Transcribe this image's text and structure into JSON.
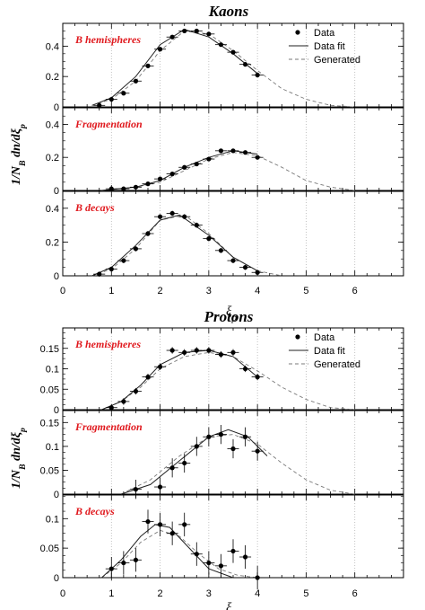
{
  "chart_data": [
    {
      "type": "scatter",
      "title": "Kaons",
      "ylabel": "1/N_B dn/dξ_p",
      "xlabel": "ξ_p",
      "xlim": [
        0,
        7
      ],
      "xticks": [
        "0",
        "1",
        "2",
        "3",
        "4",
        "5",
        "6"
      ],
      "legend": [
        "Data",
        "Data fit",
        "Generated"
      ],
      "legend_position": "top-right",
      "panels": [
        {
          "label": "B hemispheres",
          "ylim": [
            0,
            0.55
          ],
          "yticks": [
            "0",
            "0.2",
            "0.4"
          ],
          "data": {
            "x": [
              0.75,
              1.0,
              1.25,
              1.5,
              1.75,
              2.0,
              2.25,
              2.5,
              2.75,
              3.0,
              3.25,
              3.5,
              3.75,
              4.0
            ],
            "y": [
              0.01,
              0.05,
              0.09,
              0.17,
              0.27,
              0.38,
              0.46,
              0.5,
              0.5,
              0.48,
              0.41,
              0.36,
              0.28,
              0.21
            ],
            "xerr": 0.12,
            "yerr": 0.01
          },
          "data_fit": {
            "x": [
              0.6,
              1.0,
              1.5,
              2.0,
              2.5,
              3.0,
              3.5,
              4.0
            ],
            "y": [
              0.01,
              0.06,
              0.2,
              0.41,
              0.51,
              0.46,
              0.35,
              0.22
            ]
          },
          "generated": {
            "x": [
              0.6,
              1.0,
              1.5,
              2.0,
              2.5,
              3.0,
              3.5,
              4.0,
              4.5,
              5.0,
              5.5,
              6.0
            ],
            "y": [
              0.01,
              0.05,
              0.17,
              0.37,
              0.5,
              0.48,
              0.37,
              0.24,
              0.12,
              0.05,
              0.01,
              0.0
            ]
          }
        },
        {
          "label": "Fragmentation",
          "ylim": [
            0,
            0.5
          ],
          "yticks": [
            "0",
            "0.2",
            "0.4"
          ],
          "data": {
            "x": [
              1.0,
              1.25,
              1.5,
              1.75,
              2.0,
              2.25,
              2.5,
              2.75,
              3.0,
              3.25,
              3.5,
              3.75,
              4.0
            ],
            "y": [
              0.01,
              0.01,
              0.02,
              0.04,
              0.07,
              0.1,
              0.14,
              0.16,
              0.19,
              0.24,
              0.24,
              0.23,
              0.2
            ],
            "xerr": 0.12,
            "yerr": 0.01
          },
          "data_fit": {
            "x": [
              0.8,
              1.5,
              2.0,
              2.5,
              3.0,
              3.5,
              4.0
            ],
            "y": [
              0.0,
              0.02,
              0.06,
              0.14,
              0.2,
              0.24,
              0.22
            ]
          },
          "generated": {
            "x": [
              0.8,
              1.5,
              2.0,
              2.5,
              3.0,
              3.5,
              4.0,
              4.5,
              5.0,
              5.5,
              6.0
            ],
            "y": [
              0.0,
              0.02,
              0.05,
              0.12,
              0.19,
              0.23,
              0.21,
              0.14,
              0.06,
              0.02,
              0.0
            ]
          }
        },
        {
          "label": "B decays",
          "ylim": [
            0,
            0.5
          ],
          "yticks": [
            "0",
            "0.2",
            "0.4"
          ],
          "data": {
            "x": [
              0.75,
              1.0,
              1.25,
              1.5,
              1.75,
              2.0,
              2.25,
              2.5,
              2.75,
              3.0,
              3.25,
              3.5,
              3.75,
              4.0
            ],
            "y": [
              0.01,
              0.04,
              0.09,
              0.16,
              0.25,
              0.35,
              0.37,
              0.35,
              0.3,
              0.22,
              0.15,
              0.09,
              0.05,
              0.02
            ],
            "xerr": 0.12,
            "yerr": 0.015
          },
          "data_fit": {
            "x": [
              0.6,
              1.0,
              1.5,
              2.0,
              2.4,
              3.0,
              3.5,
              4.0
            ],
            "y": [
              0.0,
              0.05,
              0.18,
              0.33,
              0.36,
              0.24,
              0.11,
              0.03
            ]
          },
          "generated": {
            "x": [
              0.6,
              1.0,
              1.5,
              2.0,
              2.5,
              3.0,
              3.5,
              4.0,
              4.5
            ],
            "y": [
              0.0,
              0.04,
              0.16,
              0.33,
              0.36,
              0.25,
              0.11,
              0.03,
              0.0
            ]
          }
        }
      ]
    },
    {
      "type": "scatter",
      "title": "Protons",
      "ylabel": "1/N_B dn/dξ_p",
      "xlabel": "ξ_p",
      "xlim": [
        0,
        7
      ],
      "xticks": [
        "0",
        "1",
        "2",
        "3",
        "4",
        "5",
        "6"
      ],
      "legend": [
        "Data",
        "Data fit",
        "Generated"
      ],
      "legend_position": "top-right",
      "panels": [
        {
          "label": "B hemispheres",
          "ylim": [
            0,
            0.2
          ],
          "yticks": [
            "0",
            "0.05",
            "0.1",
            "0.15"
          ],
          "data": {
            "x": [
              1.0,
              1.25,
              1.5,
              1.75,
              2.0,
              2.25,
              2.5,
              2.75,
              3.0,
              3.25,
              3.5,
              3.75,
              4.0
            ],
            "y": [
              0.005,
              0.02,
              0.045,
              0.08,
              0.105,
              0.145,
              0.14,
              0.145,
              0.145,
              0.135,
              0.14,
              0.1,
              0.08
            ],
            "xerr": 0.12,
            "yerr": 0.008
          },
          "data_fit": {
            "x": [
              0.8,
              1.2,
              1.6,
              2.0,
              2.5,
              3.0,
              3.5,
              4.0
            ],
            "y": [
              0.0,
              0.02,
              0.06,
              0.11,
              0.14,
              0.145,
              0.13,
              0.08
            ]
          },
          "generated": {
            "x": [
              0.8,
              1.2,
              1.6,
              2.0,
              2.5,
              3.0,
              3.5,
              4.0,
              4.5,
              5.0,
              5.5,
              6.0
            ],
            "y": [
              0.0,
              0.02,
              0.055,
              0.1,
              0.13,
              0.14,
              0.13,
              0.095,
              0.055,
              0.025,
              0.005,
              0.0
            ]
          }
        },
        {
          "label": "Fragmentation",
          "ylim": [
            0,
            0.175
          ],
          "yticks": [
            "0",
            "0.05",
            "0.1",
            "0.15"
          ],
          "data": {
            "x": [
              1.5,
              2.0,
              2.25,
              2.5,
              2.75,
              3.0,
              3.25,
              3.5,
              3.75,
              4.0
            ],
            "y": [
              0.01,
              0.015,
              0.055,
              0.065,
              0.1,
              0.12,
              0.125,
              0.095,
              0.12,
              0.09
            ],
            "xerr": 0.12,
            "yerr": 0.02
          },
          "data_fit": {
            "x": [
              1.2,
              1.8,
              2.4,
              3.0,
              3.4,
              3.8,
              4.2
            ],
            "y": [
              0.0,
              0.02,
              0.07,
              0.12,
              0.135,
              0.12,
              0.08
            ]
          },
          "generated": {
            "x": [
              1.2,
              1.8,
              2.4,
              3.0,
              3.5,
              4.0,
              4.5,
              5.0,
              5.5,
              6.0
            ],
            "y": [
              0.0,
              0.03,
              0.08,
              0.12,
              0.125,
              0.105,
              0.065,
              0.03,
              0.008,
              0.0
            ]
          }
        },
        {
          "label": "B decays",
          "ylim": [
            0,
            0.14
          ],
          "yticks": [
            "0",
            "0.05",
            "0.1"
          ],
          "data": {
            "x": [
              1.0,
              1.25,
              1.5,
              1.75,
              2.0,
              2.25,
              2.5,
              2.75,
              3.0,
              3.25,
              3.5,
              3.75,
              4.0
            ],
            "y": [
              0.015,
              0.025,
              0.03,
              0.095,
              0.09,
              0.075,
              0.09,
              0.04,
              0.025,
              0.02,
              0.045,
              0.035,
              0.0
            ],
            "xerr": 0.12,
            "yerr": 0.02
          },
          "data_fit": {
            "x": [
              0.8,
              1.2,
              1.6,
              1.9,
              2.2,
              2.6,
              3.0,
              3.5
            ],
            "y": [
              0.0,
              0.03,
              0.07,
              0.09,
              0.085,
              0.05,
              0.015,
              0.0
            ]
          },
          "generated": {
            "x": [
              0.8,
              1.2,
              1.6,
              2.0,
              2.4,
              2.8,
              3.2,
              3.6,
              4.0
            ],
            "y": [
              0.0,
              0.025,
              0.06,
              0.08,
              0.07,
              0.04,
              0.015,
              0.004,
              0.0
            ]
          }
        }
      ]
    }
  ]
}
